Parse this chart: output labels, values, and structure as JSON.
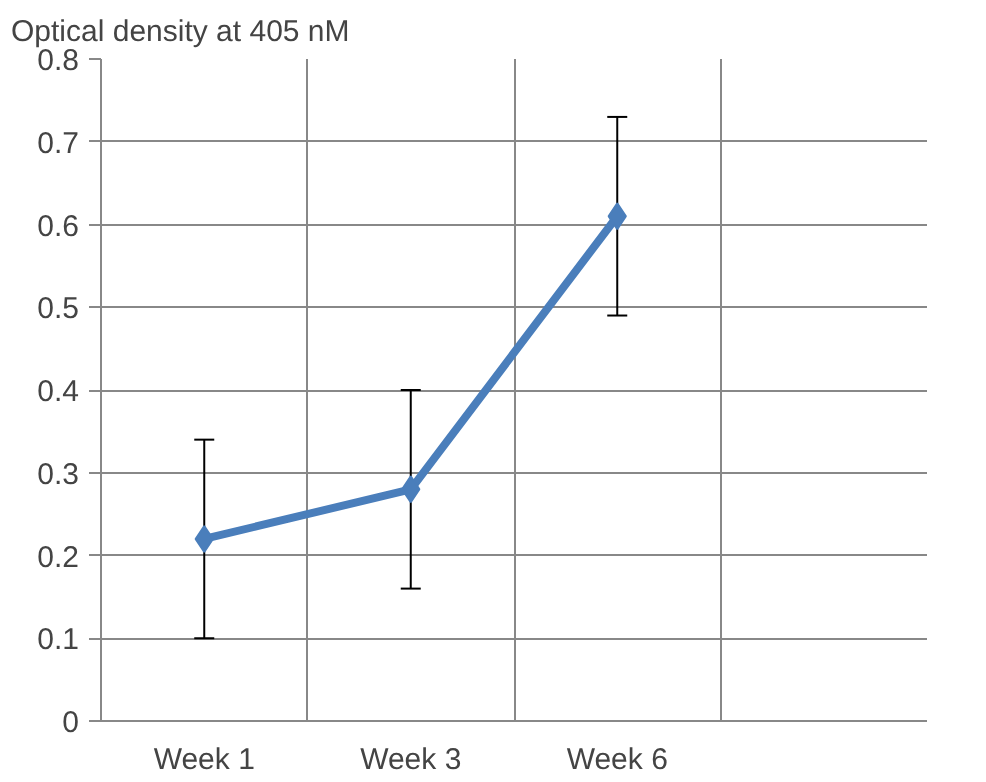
{
  "chart_data": {
    "type": "line",
    "ylabel": "Optical density at 405 nM",
    "categories": [
      "Week 1",
      "Week 3",
      "Week 6",
      null
    ],
    "series": [
      {
        "color": "#4a7ebb",
        "values": [
          0.22,
          0.28,
          0.61,
          null
        ],
        "errors": [
          0.12,
          0.12,
          0.12,
          null
        ]
      }
    ],
    "ylim": [
      0,
      0.8
    ],
    "yticks": [
      0,
      0.1,
      0.2,
      0.3,
      0.4,
      0.5,
      0.6,
      0.7,
      0.8
    ],
    "grid": true,
    "marker": "diamond",
    "line_style": "solid"
  }
}
